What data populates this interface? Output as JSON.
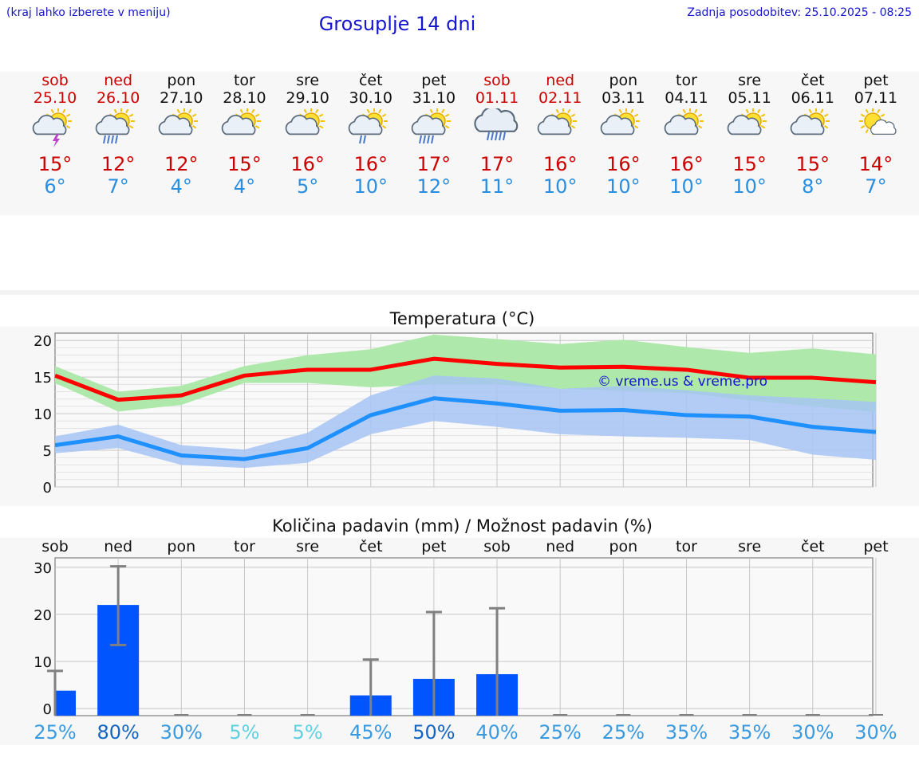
{
  "header": {
    "hint": "(kraj lahko izberete v meniju)",
    "title": "Grosuplje 14 dni",
    "updated": "Zadnja posodobitev: 25.10.2025 - 08:25"
  },
  "days": [
    {
      "name": "sob",
      "date": "25.10",
      "weekend": true,
      "icon": "sun-cloud-thunder-icon",
      "tmax": "15°",
      "tmin": "6°"
    },
    {
      "name": "ned",
      "date": "26.10",
      "weekend": true,
      "icon": "sun-cloud-rain-icon",
      "tmax": "12°",
      "tmin": "7°"
    },
    {
      "name": "pon",
      "date": "27.10",
      "weekend": false,
      "icon": "sun-cloud-icon",
      "tmax": "12°",
      "tmin": "4°"
    },
    {
      "name": "tor",
      "date": "28.10",
      "weekend": false,
      "icon": "sun-cloud-icon",
      "tmax": "15°",
      "tmin": "4°"
    },
    {
      "name": "sre",
      "date": "29.10",
      "weekend": false,
      "icon": "sun-cloud-icon",
      "tmax": "16°",
      "tmin": "5°"
    },
    {
      "name": "čet",
      "date": "30.10",
      "weekend": false,
      "icon": "sun-cloud-light-rain-icon",
      "tmax": "16°",
      "tmin": "10°"
    },
    {
      "name": "pet",
      "date": "31.10",
      "weekend": false,
      "icon": "sun-cloud-rain-icon",
      "tmax": "17°",
      "tmin": "12°"
    },
    {
      "name": "sob",
      "date": "01.11",
      "weekend": true,
      "icon": "cloud-rain-icon",
      "tmax": "17°",
      "tmin": "11°"
    },
    {
      "name": "ned",
      "date": "02.11",
      "weekend": true,
      "icon": "sun-cloud-icon",
      "tmax": "16°",
      "tmin": "10°"
    },
    {
      "name": "pon",
      "date": "03.11",
      "weekend": false,
      "icon": "sun-cloud-icon",
      "tmax": "16°",
      "tmin": "10°"
    },
    {
      "name": "tor",
      "date": "04.11",
      "weekend": false,
      "icon": "sun-cloud-icon",
      "tmax": "16°",
      "tmin": "10°"
    },
    {
      "name": "sre",
      "date": "05.11",
      "weekend": false,
      "icon": "sun-cloud-icon",
      "tmax": "15°",
      "tmin": "10°"
    },
    {
      "name": "čet",
      "date": "06.11",
      "weekend": false,
      "icon": "sun-cloud-icon",
      "tmax": "15°",
      "tmin": "8°"
    },
    {
      "name": "pet",
      "date": "07.11",
      "weekend": false,
      "icon": "sun-small-cloud-icon",
      "tmax": "14°",
      "tmin": "7°"
    }
  ],
  "chart_data": [
    {
      "type": "line",
      "title": "Temperatura (°C)",
      "watermark": "© vreme.us & vreme.pro",
      "ylim": [
        0,
        21
      ],
      "yticks": [
        0,
        5,
        10,
        15,
        20
      ],
      "grid": true,
      "x": [
        0,
        1,
        2,
        3,
        4,
        5,
        6,
        7,
        8,
        9,
        10,
        11,
        12,
        13
      ],
      "series": [
        {
          "color": "#ff0000",
          "band_color": "#aee8aa",
          "values": [
            15.2,
            11.9,
            12.5,
            15.2,
            16.0,
            16.0,
            17.5,
            16.8,
            16.3,
            16.4,
            16.0,
            14.9,
            14.9,
            14.3
          ],
          "band_low": [
            14.2,
            10.3,
            11.2,
            14.2,
            14.2,
            13.6,
            14.0,
            14.0,
            13.4,
            13.1,
            12.8,
            11.8,
            11.0,
            10.2
          ],
          "band_high": [
            16.5,
            13.0,
            13.8,
            16.5,
            18.0,
            18.8,
            20.8,
            20.2,
            19.5,
            20.1,
            19.1,
            18.3,
            18.9,
            18.1
          ]
        },
        {
          "color": "#1e90ff",
          "band_color": "#a7c4f4",
          "values": [
            5.7,
            6.9,
            4.3,
            3.8,
            5.3,
            9.8,
            12.1,
            11.4,
            10.4,
            10.5,
            9.8,
            9.6,
            8.2,
            7.5
          ],
          "band_low": [
            4.6,
            5.3,
            3.0,
            2.6,
            3.3,
            7.2,
            9.0,
            8.2,
            7.2,
            6.9,
            6.7,
            6.4,
            4.4,
            3.7
          ],
          "band_high": [
            6.9,
            8.5,
            5.7,
            5.1,
            7.4,
            12.5,
            15.2,
            14.8,
            13.4,
            13.8,
            13.2,
            12.5,
            12.1,
            11.6
          ]
        }
      ]
    },
    {
      "type": "bar",
      "title": "Količina padavin (mm) / Možnost padavin (%)",
      "categories": [
        "sob",
        "ned",
        "pon",
        "tor",
        "sre",
        "čet",
        "pet",
        "sob",
        "ned",
        "pon",
        "tor",
        "sre",
        "čet",
        "pet"
      ],
      "ylim": [
        -1.5,
        32
      ],
      "yticks": [
        0,
        10,
        20,
        30
      ],
      "grid": true,
      "bar_color": "#0055ff",
      "values": [
        3.8,
        22.0,
        0,
        0,
        0,
        2.8,
        6.3,
        7.3,
        0,
        0,
        0,
        0,
        0,
        0
      ],
      "error_high": [
        8.0,
        30.2,
        0,
        0,
        0,
        10.4,
        20.5,
        21.3,
        0,
        0,
        0,
        0,
        0,
        0
      ],
      "error_low": [
        0,
        13.5,
        0,
        0,
        0,
        0,
        0,
        0,
        0,
        0,
        0,
        0,
        0,
        0
      ],
      "probability": [
        "25%",
        "80%",
        "30%",
        "5%",
        "5%",
        "45%",
        "50%",
        "40%",
        "25%",
        "25%",
        "35%",
        "35%",
        "30%",
        "30%"
      ],
      "probability_colors": [
        "#3a9ae0",
        "#1565c0",
        "#3a9ae0",
        "#5fd0e0",
        "#5fd0e0",
        "#3a9ae0",
        "#1565c0",
        "#3a9ae0",
        "#3a9ae0",
        "#3a9ae0",
        "#3a9ae0",
        "#3a9ae0",
        "#3a9ae0",
        "#3a9ae0"
      ]
    }
  ]
}
